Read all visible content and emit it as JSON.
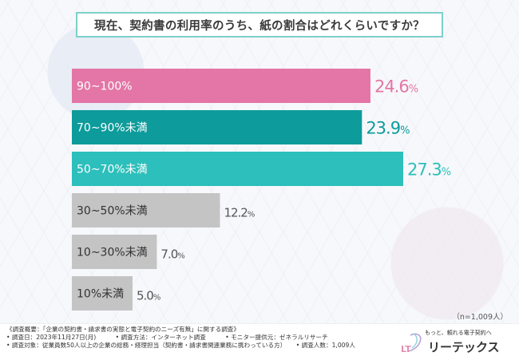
{
  "title": "現在、契約書の利用率のうち、紙の割合はどれくらいですか？",
  "chart_data": {
    "type": "bar",
    "orientation": "horizontal",
    "title": "現在、契約書の利用率のうち、紙の割合はどれくらいですか？",
    "categories": [
      "90~100%",
      "70~90%未満",
      "50~70%未満",
      "30~50%未満",
      "10~30%未満",
      "10%未満"
    ],
    "values": [
      24.6,
      23.9,
      27.3,
      12.2,
      7.0,
      5.0
    ],
    "value_labels": [
      {
        "main": "24.6",
        "suffix": "%"
      },
      {
        "main": "23.9",
        "suffix": "%"
      },
      {
        "main": "27.3",
        "suffix": "%"
      },
      {
        "main": "12.2",
        "suffix": "%"
      },
      {
        "main": "7.0",
        "suffix": "%"
      },
      {
        "main": "5.0",
        "suffix": "%"
      }
    ],
    "bar_colors": [
      "#e376a6",
      "#0d9b9b",
      "#2cbfbb",
      "#c4c4c4",
      "#c4c4c4",
      "#c4c4c4"
    ],
    "label_text_colors": [
      "#ffffff",
      "#ffffff",
      "#ffffff",
      "#333333",
      "#333333",
      "#333333"
    ],
    "value_colors": [
      "#e376a6",
      "#0d9b9b",
      "#2cbfbb",
      "#555555",
      "#555555",
      "#555555"
    ],
    "xlim": [
      0,
      27.3
    ],
    "unit": "%"
  },
  "sample_note": "（n=1,009人）",
  "survey": {
    "overview": "《調査概要：「企業の契約書・請求書の実態と電子契約のニーズ有無」に関する調査》",
    "date": "• 調査日：2023年11月27日(月)",
    "method": "• 調査方法：インターネット調査",
    "provider": "• モニター提供元：ゼネラルリサーチ",
    "target": "• 調査対象：従業員数50人以上の企業の総務・経理担当（契約書・請求書関連業務に携わっている方）",
    "count": "• 調査人数：1,009人"
  },
  "brand": {
    "logo_text": "LT",
    "tagline": "もっと、頼れる電子契約へ",
    "name": "リーテックス"
  }
}
